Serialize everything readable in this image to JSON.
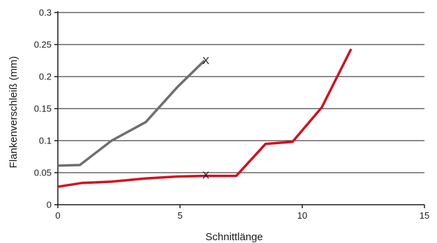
{
  "chart_data": {
    "type": "line",
    "title": "",
    "xlabel": "Schnittlänge",
    "ylabel": "Flankenverschleiß (mm)",
    "xlim": [
      0,
      15
    ],
    "ylim": [
      0,
      0.3
    ],
    "x_ticks": [
      0,
      5,
      10,
      15
    ],
    "x_tick_labels": [
      "0",
      "5",
      "10",
      "15"
    ],
    "y_ticks": [
      0,
      0.05,
      0.1,
      0.15,
      0.2,
      0.25,
      0.3
    ],
    "y_tick_labels": [
      "0",
      "0.05",
      "0.1",
      "0.15",
      "0.2",
      "0.25",
      "0.3"
    ],
    "grid": "horizontal",
    "legend": "none",
    "series": [
      {
        "color": "#6e6e6e",
        "x": [
          0,
          0.9,
          2.2,
          3.6,
          4.9,
          6.0
        ],
        "y": [
          0.061,
          0.062,
          0.1,
          0.129,
          0.184,
          0.225
        ]
      },
      {
        "color": "#d40f1f",
        "x": [
          0,
          1,
          2.2,
          3.6,
          4.9,
          6.0,
          7.3,
          8.5,
          9.6,
          10.8,
          12.0
        ],
        "y": [
          0.028,
          0.034,
          0.036,
          0.041,
          0.044,
          0.045,
          0.045,
          0.095,
          0.098,
          0.152,
          0.243
        ]
      }
    ],
    "annotations": [
      {
        "text": "X",
        "x": 6.0,
        "y": 0.225
      },
      {
        "text": "X",
        "x": 6.0,
        "y": 0.046
      }
    ]
  }
}
